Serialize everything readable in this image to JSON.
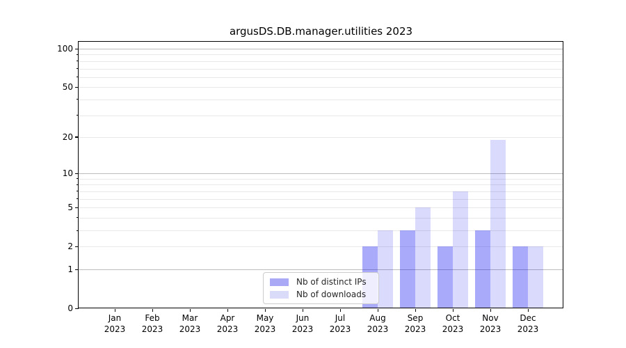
{
  "title": "argusDS.DB.manager.utilities 2023",
  "chart_data": {
    "type": "bar",
    "title": "argusDS.DB.manager.utilities 2023",
    "categories": [
      "Jan 2023",
      "Feb 2023",
      "Mar 2023",
      "Apr 2023",
      "May 2023",
      "Jun 2023",
      "Jul 2023",
      "Aug 2023",
      "Sep 2023",
      "Oct 2023",
      "Nov 2023",
      "Dec 2023"
    ],
    "x_tick_top": [
      "Jan",
      "Feb",
      "Mar",
      "Apr",
      "May",
      "Jun",
      "Jul",
      "Aug",
      "Sep",
      "Oct",
      "Nov",
      "Dec"
    ],
    "x_tick_bottom": "2023",
    "series": [
      {
        "name": "Nb of distinct IPs",
        "values": [
          0,
          0,
          0,
          0,
          0,
          0,
          0,
          2,
          3,
          2,
          3,
          2
        ],
        "bar_color": "rgba(8,8,240,0.345)",
        "legend_color": "#a9a9f6"
      },
      {
        "name": "Nb of downloads",
        "values": [
          0,
          0,
          0,
          0,
          0,
          0,
          0,
          3,
          5,
          7,
          19,
          2
        ],
        "bar_color": "rgba(8,8,240,0.15)",
        "legend_color": "#dadaf9"
      }
    ],
    "y_scale": "log1p",
    "ylim": [
      0,
      113
    ],
    "y_ticks_labeled": [
      0,
      1,
      2,
      5,
      10,
      20,
      50,
      100
    ],
    "y_minor_ticks": [
      3,
      4,
      6,
      7,
      8,
      9,
      30,
      40,
      60,
      70,
      80,
      90
    ],
    "y_major_gridlines": [
      1,
      10,
      100
    ],
    "y_minor_gridlines": [
      2,
      3,
      4,
      5,
      6,
      7,
      8,
      9,
      20,
      30,
      40,
      50,
      60,
      70,
      80,
      90
    ],
    "grid": "horizontal",
    "legend_position": "lower center"
  },
  "colors": {
    "grid_major": "#bcbcbc",
    "grid_minor": "#e8e8e8",
    "spine": "#000000",
    "legend_border": "#cccccc",
    "legend_bg": "rgba(255,255,255,0.8)",
    "background": "#ffffff"
  }
}
